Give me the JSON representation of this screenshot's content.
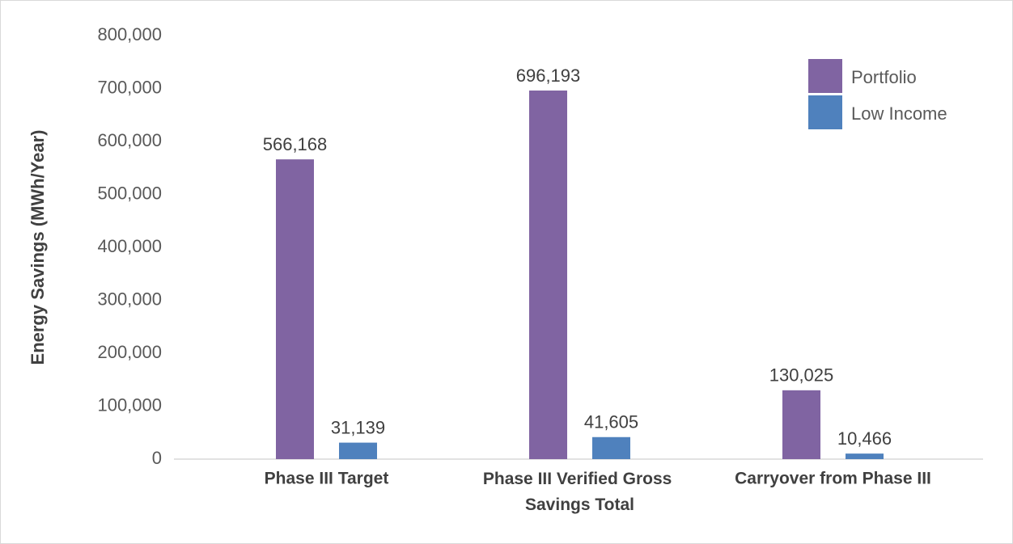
{
  "chart_data": {
    "type": "bar",
    "y_axis_label": "Energy Savings (MWh/Year)",
    "categories": [
      "Phase III Target",
      "Phase III Verified Gross Savings Total",
      "Carryover from Phase III"
    ],
    "series": [
      {
        "name": "Portfolio",
        "color": "#8064a2",
        "values": [
          566168,
          696193,
          130025
        ],
        "value_labels": [
          "566,168",
          "696,193",
          "130,025"
        ]
      },
      {
        "name": "Low Income",
        "color": "#4f81bd",
        "values": [
          31139,
          41605,
          10466
        ],
        "value_labels": [
          "31,139",
          "41,605",
          "10,466"
        ]
      }
    ],
    "ylim": [
      0,
      800000
    ],
    "yticks": [
      0,
      {
        "value": 100000,
        "label": "100,000"
      },
      {
        "value": 200000,
        "label": "200,000"
      },
      {
        "value": 300000,
        "label": "300,000"
      },
      {
        "value": 400000,
        "label": "400,000"
      },
      {
        "value": 500000,
        "label": "500,000"
      },
      {
        "value": 600000,
        "label": "600,000"
      },
      {
        "value": 700000,
        "label": "700,000"
      },
      {
        "value": 800000,
        "label": "800,000"
      }
    ],
    "grid": false,
    "legend": "top-right"
  }
}
